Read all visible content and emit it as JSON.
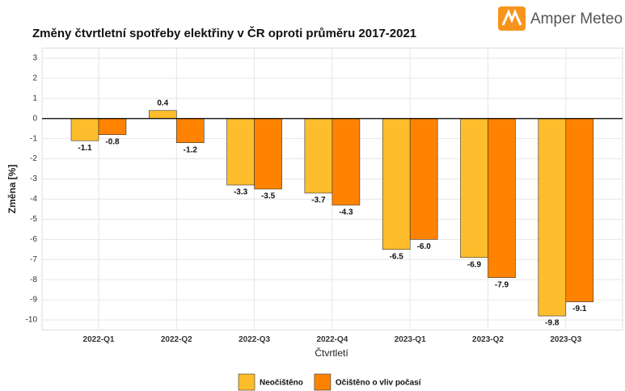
{
  "brand": "Amper Meteo",
  "chart_data": {
    "type": "bar",
    "title": "Změny čtvrtletní spotřeby elektřiny v ČR oproti průměru 2017-2021",
    "xlabel": "Čtvrtletí",
    "ylabel": "Změna [%]",
    "categories": [
      "2022-Q1",
      "2022-Q2",
      "2022-Q3",
      "2022-Q4",
      "2023-Q1",
      "2023-Q2",
      "2023-Q3"
    ],
    "series": [
      {
        "name": "Neočištěno",
        "color": "#fdbd2c",
        "values": [
          -1.1,
          0.4,
          -3.3,
          -3.7,
          -6.5,
          -6.9,
          -9.8
        ],
        "value_labels": [
          "-1.1",
          "0.4",
          "-3.3",
          "-3.7",
          "-6.5",
          "-6.9",
          "-9.8"
        ]
      },
      {
        "name": "Očištěno o vliv počasí",
        "color": "#ff8300",
        "values": [
          -0.8,
          -1.2,
          -3.5,
          -4.3,
          -6.0,
          -7.9,
          -9.1
        ],
        "value_labels": [
          "-0.8",
          "-1.2",
          "-3.5",
          "-4.3",
          "-6.0",
          "-7.9",
          "-9.1"
        ]
      }
    ],
    "ylim": [
      -10.5,
      3.5
    ],
    "yticks": [
      -10,
      -9,
      -8,
      -7,
      -6,
      -5,
      -4,
      -3,
      -2,
      -1,
      0,
      1,
      2,
      3
    ],
    "grid": true,
    "legend": "bottom"
  }
}
